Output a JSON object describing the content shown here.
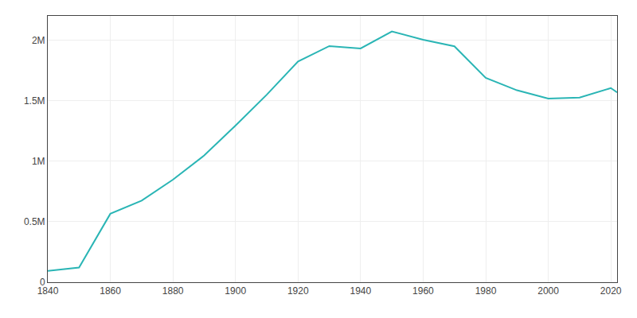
{
  "chart_data": {
    "type": "line",
    "x": [
      1840,
      1850,
      1860,
      1870,
      1880,
      1890,
      1900,
      1910,
      1920,
      1930,
      1940,
      1950,
      1960,
      1970,
      1980,
      1990,
      2000,
      2010,
      2020,
      2022
    ],
    "values": [
      93665,
      121376,
      565529,
      674022,
      847170,
      1046964,
      1293697,
      1549008,
      1823779,
      1950961,
      1931334,
      2071605,
      2002512,
      1948609,
      1688210,
      1585577,
      1517550,
      1526006,
      1603797,
      1567872
    ],
    "color": "#2ab5b5",
    "xlim": [
      1840,
      2022
    ],
    "ylim": [
      0,
      2200000
    ],
    "xticks": [
      1840,
      1860,
      1880,
      1900,
      1920,
      1940,
      1960,
      1980,
      2000,
      2020
    ],
    "yticks": [
      0,
      {
        "value": 500000,
        "label": "0.5M"
      },
      {
        "value": 1000000,
        "label": "1M"
      },
      {
        "value": 1500000,
        "label": "1.5M"
      },
      {
        "value": 2000000,
        "label": "2M"
      }
    ],
    "grid": true
  }
}
